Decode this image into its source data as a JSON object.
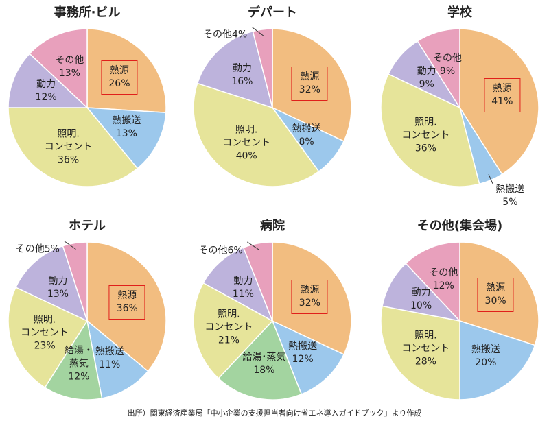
{
  "chart_data": [
    {
      "type": "pie",
      "title": "事務所·ビル",
      "categories": [
        "熱源",
        "熱搬送",
        "照明.\nコンセント",
        "動力",
        "その他"
      ],
      "values": [
        26,
        13,
        36,
        12,
        13
      ],
      "value_labels": [
        "26%",
        "13%",
        "36%",
        "12%",
        "13%"
      ],
      "colors": [
        "#f2bd80",
        "#9cc8ec",
        "#e6e49a",
        "#bdb3dc",
        "#e8a0bc"
      ]
    },
    {
      "type": "pie",
      "title": "デパート",
      "categories": [
        "熱源",
        "熱搬送",
        "照明.\nコンセント",
        "動力",
        "その他"
      ],
      "values": [
        32,
        8,
        40,
        16,
        4
      ],
      "value_labels": [
        "32%",
        "8%",
        "40%",
        "16%",
        "4%"
      ],
      "colors": [
        "#f2bd80",
        "#9cc8ec",
        "#e6e49a",
        "#bdb3dc",
        "#e8a0bc"
      ]
    },
    {
      "type": "pie",
      "title": "学校",
      "categories": [
        "熱源",
        "熱搬送",
        "照明.\nコンセント",
        "動力",
        "その他"
      ],
      "values": [
        41,
        5,
        36,
        9,
        9
      ],
      "value_labels": [
        "41%",
        "5%",
        "36%",
        "9%",
        "9%"
      ],
      "colors": [
        "#f2bd80",
        "#9cc8ec",
        "#e6e49a",
        "#bdb3dc",
        "#e8a0bc"
      ]
    },
    {
      "type": "pie",
      "title": "ホテル",
      "categories": [
        "熱源",
        "熱搬送",
        "給湯・\n蒸気",
        "照明.\nコンセント",
        "動力",
        "その他"
      ],
      "values": [
        36,
        11,
        12,
        23,
        13,
        5
      ],
      "value_labels": [
        "36%",
        "11%",
        "12%",
        "23%",
        "13%",
        "5%"
      ],
      "colors": [
        "#f2bd80",
        "#9cc8ec",
        "#a3d4a0",
        "#e6e49a",
        "#bdb3dc",
        "#e8a0bc"
      ]
    },
    {
      "type": "pie",
      "title": "病院",
      "categories": [
        "熱源",
        "熱搬送",
        "給湯･蒸気",
        "照明.\nコンセント",
        "動力",
        "その他"
      ],
      "values": [
        32,
        12,
        18,
        21,
        11,
        6
      ],
      "value_labels": [
        "32%",
        "12%",
        "18%",
        "21%",
        "11%",
        "6%"
      ],
      "colors": [
        "#f2bd80",
        "#9cc8ec",
        "#a3d4a0",
        "#e6e49a",
        "#bdb3dc",
        "#e8a0bc"
      ]
    },
    {
      "type": "pie",
      "title": "その他(集会場)",
      "categories": [
        "熱源",
        "熱搬送",
        "照明.\nコンセント",
        "動力",
        "その他"
      ],
      "values": [
        30,
        20,
        28,
        10,
        12
      ],
      "value_labels": [
        "30%",
        "20%",
        "28%",
        "10%",
        "12%"
      ],
      "colors": [
        "#f2bd80",
        "#9cc8ec",
        "#e6e49a",
        "#bdb3dc",
        "#e8a0bc"
      ]
    }
  ],
  "source": "出所）関東経済産業局「中小企業の支援担当者向け省エネ導入ガイドブック」より作成"
}
